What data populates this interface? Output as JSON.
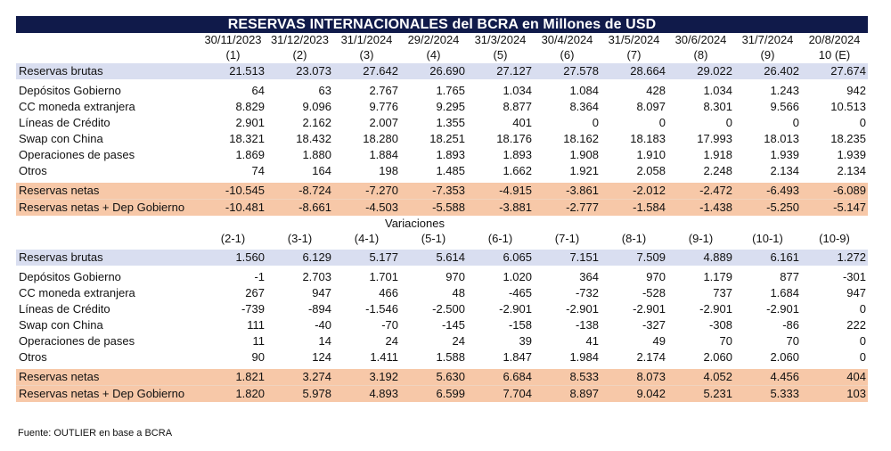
{
  "chart_data": {
    "type": "table",
    "title": "RESERVAS INTERNACIONALES del BCRA en Millones de USD",
    "columns": [
      {
        "date": "30/11/2023",
        "idx": "(1)"
      },
      {
        "date": "31/12/2023",
        "idx": "(2)"
      },
      {
        "date": "31/1/2024",
        "idx": "(3)"
      },
      {
        "date": "29/2/2024",
        "idx": "(4)"
      },
      {
        "date": "31/3/2024",
        "idx": "(5)"
      },
      {
        "date": "30/4/2024",
        "idx": "(6)"
      },
      {
        "date": "31/5/2024",
        "idx": "(7)"
      },
      {
        "date": "30/6/2024",
        "idx": "(8)"
      },
      {
        "date": "31/7/2024",
        "idx": "(9)"
      },
      {
        "date": "20/8/2024",
        "idx": "10 (E)"
      }
    ],
    "levels": [
      {
        "label": "Reservas brutas",
        "values": [
          "21.513",
          "23.073",
          "27.642",
          "26.690",
          "27.127",
          "27.578",
          "28.664",
          "29.022",
          "26.402",
          "27.674"
        ]
      },
      {
        "label": "Depósitos Gobierno",
        "values": [
          "64",
          "63",
          "2.767",
          "1.765",
          "1.034",
          "1.084",
          "428",
          "1.034",
          "1.243",
          "942"
        ]
      },
      {
        "label": "CC moneda extranjera",
        "values": [
          "8.829",
          "9.096",
          "9.776",
          "9.295",
          "8.877",
          "8.364",
          "8.097",
          "8.301",
          "9.566",
          "10.513"
        ]
      },
      {
        "label": "Líneas de Crédito",
        "values": [
          "2.901",
          "2.162",
          "2.007",
          "1.355",
          "401",
          "0",
          "0",
          "0",
          "0",
          "0"
        ]
      },
      {
        "label": "Swap con China",
        "values": [
          "18.321",
          "18.432",
          "18.280",
          "18.251",
          "18.176",
          "18.162",
          "18.183",
          "17.993",
          "18.013",
          "18.235"
        ]
      },
      {
        "label": "Operaciones de pases",
        "values": [
          "1.869",
          "1.880",
          "1.884",
          "1.893",
          "1.893",
          "1.908",
          "1.910",
          "1.918",
          "1.939",
          "1.939"
        ]
      },
      {
        "label": "Otros",
        "values": [
          "74",
          "164",
          "198",
          "1.485",
          "1.662",
          "1.921",
          "2.058",
          "2.248",
          "2.134",
          "2.134"
        ]
      },
      {
        "label": "Reservas netas",
        "values": [
          "-10.545",
          "-8.724",
          "-7.270",
          "-7.353",
          "-4.915",
          "-3.861",
          "-2.012",
          "-2.472",
          "-6.493",
          "-6.089"
        ]
      },
      {
        "label": "Reservas netas + Dep Gobierno",
        "values": [
          "-10.481",
          "-8.661",
          "-4.503",
          "-5.588",
          "-3.881",
          "-2.777",
          "-1.584",
          "-1.438",
          "-5.250",
          "-5.147"
        ]
      }
    ],
    "variations_title": "Variaciones",
    "variation_columns": [
      "(2-1)",
      "(3-1)",
      "(4-1)",
      "(5-1)",
      "(6-1)",
      "(7-1)",
      "(8-1)",
      "(9-1)",
      "(10-1)",
      "(10-9)"
    ],
    "variations": [
      {
        "label": "Reservas brutas",
        "values": [
          "1.560",
          "6.129",
          "5.177",
          "5.614",
          "6.065",
          "7.151",
          "7.509",
          "4.889",
          "6.161",
          "1.272"
        ]
      },
      {
        "label": "Depósitos Gobierno",
        "values": [
          "-1",
          "2.703",
          "1.701",
          "970",
          "1.020",
          "364",
          "970",
          "1.179",
          "877",
          "-301"
        ]
      },
      {
        "label": "CC moneda extranjera",
        "values": [
          "267",
          "947",
          "466",
          "48",
          "-465",
          "-732",
          "-528",
          "737",
          "1.684",
          "947"
        ]
      },
      {
        "label": "Líneas de Crédito",
        "values": [
          "-739",
          "-894",
          "-1.546",
          "-2.500",
          "-2.901",
          "-2.901",
          "-2.901",
          "-2.901",
          "-2.901",
          "0"
        ]
      },
      {
        "label": "Swap con China",
        "values": [
          "111",
          "-40",
          "-70",
          "-145",
          "-158",
          "-138",
          "-327",
          "-308",
          "-86",
          "222"
        ]
      },
      {
        "label": "Operaciones de pases",
        "values": [
          "11",
          "14",
          "24",
          "24",
          "39",
          "41",
          "49",
          "70",
          "70",
          "0"
        ]
      },
      {
        "label": "Otros",
        "values": [
          "90",
          "124",
          "1.411",
          "1.588",
          "1.847",
          "1.984",
          "2.174",
          "2.060",
          "2.060",
          "0"
        ]
      },
      {
        "label": "Reservas netas",
        "values": [
          "1.821",
          "3.274",
          "3.192",
          "5.630",
          "6.684",
          "8.533",
          "8.073",
          "4.052",
          "4.456",
          "404"
        ]
      },
      {
        "label": "Reservas netas + Dep Gobierno",
        "values": [
          "1.820",
          "5.978",
          "4.893",
          "6.599",
          "7.704",
          "8.897",
          "9.042",
          "5.231",
          "5.333",
          "103"
        ]
      }
    ],
    "source": "Fuente: OUTLIER en base a BCRA"
  },
  "colors": {
    "title_bg": "#101a4a",
    "blue_row": "#d9def0",
    "orange_row": "#f7c8a8"
  }
}
